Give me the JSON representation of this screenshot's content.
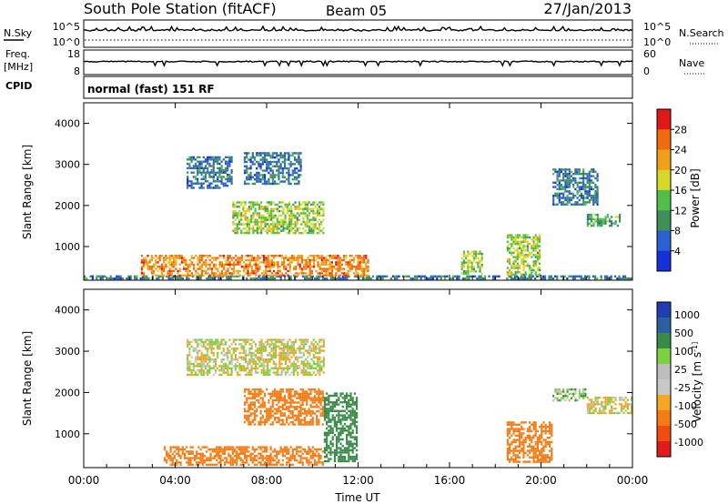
{
  "header": {
    "station": "South Pole Station (fitACF)",
    "beam": "Beam 05",
    "date": "27/Jan/2013"
  },
  "strip_panels": {
    "nsky": {
      "left_label": "N.Sky",
      "left_ticks": [
        "10^5",
        "10^0"
      ],
      "right_label": "N.Search",
      "right_ticks": [
        "10^5",
        "10^0"
      ]
    },
    "freq": {
      "left_label_line1": "Freq.",
      "left_label_line2": "[MHz]",
      "left_ticks": [
        "18",
        "8"
      ],
      "right_label": "Nave",
      "right_ticks": [
        "60",
        "0"
      ]
    },
    "cpid": {
      "label": "CPID",
      "mode_text": "normal (fast) 151 RF"
    }
  },
  "colors": {
    "power_scale": [
      "#1530d8",
      "#2c5fcf",
      "#3e8f5a",
      "#4fbf4a",
      "#d7d72a",
      "#f0a018",
      "#f26a10",
      "#e01818"
    ],
    "velocity_scale": [
      "#e31a1c",
      "#f04d12",
      "#f57c14",
      "#f5a623",
      "#c8c8c8",
      "#bdbdbd",
      "#7fd040",
      "#3a8a4a",
      "#2c5fa0",
      "#1f3fb0"
    ]
  },
  "chart_data": [
    {
      "type": "heatmap",
      "name_key": "power",
      "xlabel": "",
      "ylabel": "Slant Range [km]",
      "ylim": [
        180,
        4500
      ],
      "yticks": [
        "1000",
        "2000",
        "3000",
        "4000"
      ],
      "colorbar": {
        "label": "Power [dB]",
        "ticks": [
          "4",
          "8",
          "12",
          "16",
          "20",
          "24",
          "28"
        ],
        "range": [
          0,
          32
        ]
      },
      "echo_regions": [
        {
          "t_start": 0.0,
          "t_end": 24.0,
          "r_min": 180,
          "r_max": 300,
          "level": 8
        },
        {
          "t_start": 2.5,
          "t_end": 12.5,
          "r_min": 280,
          "r_max": 800,
          "level": 24
        },
        {
          "t_start": 4.5,
          "t_end": 6.5,
          "r_min": 2400,
          "r_max": 3200,
          "level": 8
        },
        {
          "t_start": 6.5,
          "t_end": 10.5,
          "r_min": 1300,
          "r_max": 2100,
          "level": 16
        },
        {
          "t_start": 7.0,
          "t_end": 9.5,
          "r_min": 2500,
          "r_max": 3300,
          "level": 8
        },
        {
          "t_start": 16.5,
          "t_end": 17.5,
          "r_min": 300,
          "r_max": 900,
          "level": 16
        },
        {
          "t_start": 18.5,
          "t_end": 20.0,
          "r_min": 300,
          "r_max": 1300,
          "level": 16
        },
        {
          "t_start": 20.5,
          "t_end": 22.5,
          "r_min": 2000,
          "r_max": 2900,
          "level": 8
        },
        {
          "t_start": 22.0,
          "t_end": 23.5,
          "r_min": 1500,
          "r_max": 1800,
          "level": 12
        }
      ]
    },
    {
      "type": "heatmap",
      "name_key": "velocity",
      "xlabel": "Time UT",
      "ylabel": "Slant Range [km]",
      "ylim": [
        180,
        4500
      ],
      "yticks": [
        "1000",
        "2000",
        "3000",
        "4000"
      ],
      "xticks": [
        "00:00",
        "04:00",
        "08:00",
        "12:00",
        "16:00",
        "20:00",
        "00:00"
      ],
      "xlim": [
        0,
        24
      ],
      "colorbar": {
        "label": "Velocity [m s^-1]",
        "ticks": [
          "1000",
          "500",
          "100",
          "25",
          "-25",
          "-100",
          "-500",
          "-1000"
        ]
      },
      "echo_regions": [
        {
          "t_start": 3.5,
          "t_end": 10.5,
          "r_min": 250,
          "r_max": 700,
          "velocity": -300
        },
        {
          "t_start": 7.0,
          "t_end": 10.5,
          "r_min": 1200,
          "r_max": 2100,
          "velocity": -400
        },
        {
          "t_start": 4.5,
          "t_end": 10.5,
          "r_min": 2400,
          "r_max": 3300,
          "velocity": 0
        },
        {
          "t_start": 10.5,
          "t_end": 12.0,
          "r_min": 300,
          "r_max": 2000,
          "velocity": 300
        },
        {
          "t_start": 18.5,
          "t_end": 20.5,
          "r_min": 300,
          "r_max": 1300,
          "velocity": -200
        },
        {
          "t_start": 20.5,
          "t_end": 22.0,
          "r_min": 1800,
          "r_max": 2100,
          "velocity": 60
        },
        {
          "t_start": 22.0,
          "t_end": 24.0,
          "r_min": 1500,
          "r_max": 1900,
          "velocity": 0
        }
      ]
    }
  ]
}
